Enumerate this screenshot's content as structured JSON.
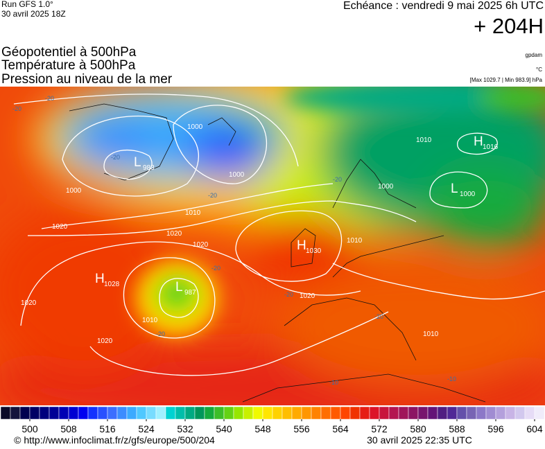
{
  "header": {
    "run": "Run GFS 1.0°",
    "run_date": "30 avril 2025 18Z",
    "echeance": "Echéance : vendredi 9 mai 2025 6h UTC",
    "lead": "+ 204H",
    "fields": [
      "Géopotentiel à 500hPa",
      "Température à 500hPa",
      "Pression au niveau de la mer"
    ],
    "unit_geo": "gpdam",
    "unit_temp": "°C",
    "extremes": "[Max 1029.7 | Min 983.9] hPa"
  },
  "map": {
    "centers": [
      {
        "letter": "H",
        "value": "1016"
      },
      {
        "letter": "L",
        "value": "1000"
      },
      {
        "letter": "H",
        "value": "1030"
      },
      {
        "letter": "L",
        "value": "983"
      },
      {
        "letter": "H",
        "value": "1028"
      },
      {
        "letter": "L",
        "value": "987"
      }
    ],
    "isobar_labels": [
      "1000",
      "1000",
      "1000",
      "1010",
      "1020",
      "1020",
      "1020",
      "1010",
      "1020",
      "1020",
      "1020",
      "1010",
      "1010",
      "1010",
      "1000"
    ],
    "temp_labels": [
      "-20",
      "-20",
      "-20",
      "-20",
      "-20",
      "-20",
      "-20",
      "-20",
      "-20",
      "-10",
      "-10"
    ]
  },
  "colorbar": {
    "range": [
      494,
      606
    ],
    "ticks": [
      500,
      508,
      516,
      524,
      532,
      540,
      548,
      556,
      564,
      572,
      580,
      588,
      596,
      604
    ],
    "colors": [
      "#0a0a28",
      "#14143c",
      "#000050",
      "#000064",
      "#00007d",
      "#000096",
      "#0000b4",
      "#0000d2",
      "#0000f0",
      "#1432ff",
      "#2850ff",
      "#3c6eff",
      "#3c8cff",
      "#3caaff",
      "#50c8ff",
      "#78dcff",
      "#a0f0ff",
      "#00d2d2",
      "#00beaa",
      "#00aa82",
      "#00965a",
      "#14aa3c",
      "#3cbe28",
      "#64d214",
      "#96e600",
      "#c8f000",
      "#f0fa00",
      "#ffe600",
      "#ffd200",
      "#ffbe00",
      "#ffaa00",
      "#ff9600",
      "#ff8200",
      "#ff6e00",
      "#ff5a00",
      "#ff4600",
      "#f03200",
      "#e61e14",
      "#dc1428",
      "#c8143c",
      "#b41450",
      "#a0145a",
      "#8c1464",
      "#78146e",
      "#641478",
      "#501e82",
      "#502896",
      "#6450aa",
      "#7864b4",
      "#8c78c8",
      "#a08cd2",
      "#b4a0dc",
      "#c8b4e6",
      "#d2c8ee",
      "#e6dcf6",
      "#f0ecfa"
    ]
  },
  "footer": {
    "url": "© http://www.infoclimat.fr/z/gfs/europe/500/204",
    "generated": "30 avril 2025 22:35 UTC"
  }
}
